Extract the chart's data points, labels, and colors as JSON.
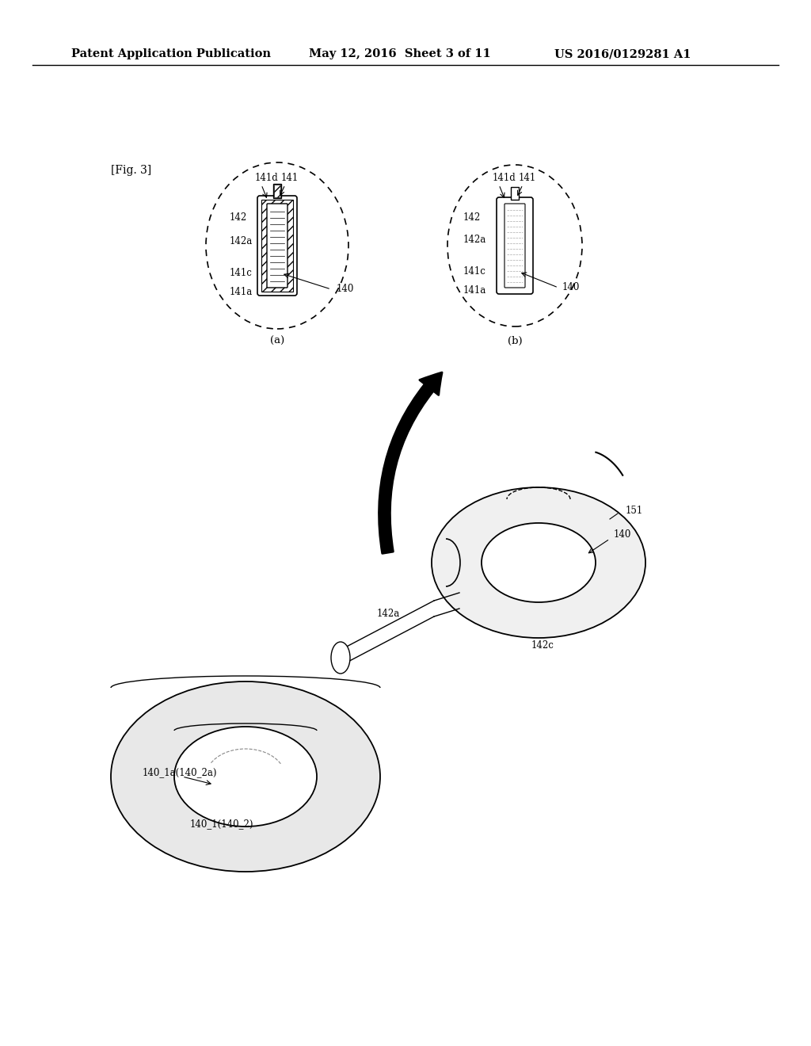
{
  "bg_color": "#ffffff",
  "header_text": "Patent Application Publication",
  "header_date": "May 12, 2016  Sheet 3 of 11",
  "header_patent": "US 2016/0129281 A1",
  "fig_label": "[Fig. 3]",
  "diagram_labels": {
    "141d_left": "141d",
    "141_left": "141",
    "140_left": "140",
    "141a_left": "141a",
    "141c_left": "141c",
    "142a_left": "142a",
    "142_left": "142",
    "caption_a": "(a)",
    "141d_right": "141d",
    "141_right": "141",
    "140_right": "140",
    "141a_right": "141a",
    "141c_right": "141c",
    "142a_right": "142a",
    "142_right": "142",
    "caption_b": "(b)",
    "label_142a": "142a",
    "label_142c": "142c",
    "label_140": "140",
    "label_151": "151",
    "label_140_1a": "140_1a(140_2a)",
    "label_140_1": "140_1(140_2)"
  }
}
